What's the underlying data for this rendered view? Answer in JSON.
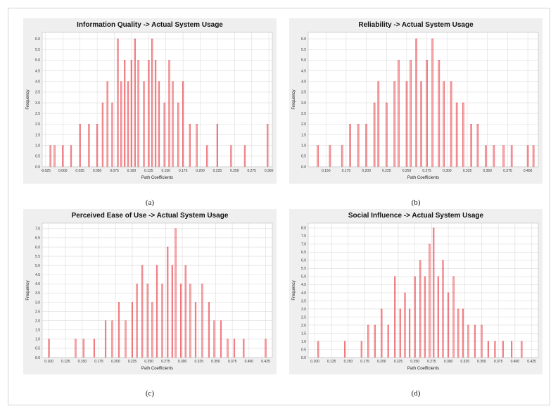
{
  "colors": {
    "bar": "#e8424a",
    "plot_bg": "#ffffff",
    "panel_bg": "#efefef",
    "grid": "#dcdcdc"
  },
  "chart_data": [
    {
      "type": "bar",
      "title": "Information Quality -> Actual System Usage",
      "caption": "(a)",
      "xlabel": "Path Coefficients",
      "ylabel": "Frequency",
      "xlim": [
        -0.03,
        0.305
      ],
      "ylim": [
        0,
        6.3
      ],
      "xticks": [
        "-0.025",
        "0.000",
        "0.025",
        "0.050",
        "0.075",
        "0.100",
        "0.125",
        "0.150",
        "0.175",
        "0.200",
        "0.225",
        "0.250",
        "0.275",
        "0.300"
      ],
      "yticks": [
        "0.0",
        "0.5",
        "1.0",
        "1.5",
        "2.0",
        "2.5",
        "3.0",
        "3.5",
        "4.0",
        "4.5",
        "5.0",
        "5.5",
        "6.0"
      ],
      "bars": [
        [
          -0.018,
          1
        ],
        [
          -0.012,
          1
        ],
        [
          0.0,
          1
        ],
        [
          0.012,
          1
        ],
        [
          0.025,
          2
        ],
        [
          0.038,
          2
        ],
        [
          0.05,
          2
        ],
        [
          0.058,
          3
        ],
        [
          0.065,
          4
        ],
        [
          0.072,
          3
        ],
        [
          0.08,
          6
        ],
        [
          0.085,
          4
        ],
        [
          0.09,
          5
        ],
        [
          0.095,
          4
        ],
        [
          0.1,
          5
        ],
        [
          0.105,
          6
        ],
        [
          0.11,
          5
        ],
        [
          0.118,
          4
        ],
        [
          0.125,
          5
        ],
        [
          0.13,
          6
        ],
        [
          0.135,
          5
        ],
        [
          0.14,
          4
        ],
        [
          0.148,
          3
        ],
        [
          0.155,
          5
        ],
        [
          0.16,
          4
        ],
        [
          0.168,
          3
        ],
        [
          0.175,
          4
        ],
        [
          0.185,
          2
        ],
        [
          0.195,
          2
        ],
        [
          0.21,
          1
        ],
        [
          0.225,
          2
        ],
        [
          0.245,
          1
        ],
        [
          0.265,
          1
        ],
        [
          0.298,
          2
        ]
      ]
    },
    {
      "type": "bar",
      "title": "Reliability -> Actual System Usage",
      "caption": "(b)",
      "xlabel": "Path Coefficients",
      "ylabel": "Frequency",
      "xlim": [
        0.128,
        0.413
      ],
      "ylim": [
        0,
        6.3
      ],
      "xticks": [
        "0.150",
        "0.175",
        "0.200",
        "0.225",
        "0.250",
        "0.275",
        "0.300",
        "0.325",
        "0.350",
        "0.375",
        "0.400"
      ],
      "yticks": [
        "0.0",
        "0.5",
        "1.0",
        "1.5",
        "2.0",
        "2.5",
        "3.0",
        "3.5",
        "4.0",
        "4.5",
        "5.0",
        "5.5",
        "6.0"
      ],
      "bars": [
        [
          0.14,
          1
        ],
        [
          0.155,
          1
        ],
        [
          0.17,
          1
        ],
        [
          0.18,
          2
        ],
        [
          0.19,
          2
        ],
        [
          0.2,
          2
        ],
        [
          0.21,
          3
        ],
        [
          0.215,
          4
        ],
        [
          0.225,
          3
        ],
        [
          0.235,
          4
        ],
        [
          0.24,
          5
        ],
        [
          0.25,
          4
        ],
        [
          0.255,
          5
        ],
        [
          0.262,
          6
        ],
        [
          0.268,
          4
        ],
        [
          0.275,
          5
        ],
        [
          0.282,
          6
        ],
        [
          0.29,
          5
        ],
        [
          0.296,
          4
        ],
        [
          0.305,
          4
        ],
        [
          0.312,
          3
        ],
        [
          0.32,
          3
        ],
        [
          0.33,
          2
        ],
        [
          0.338,
          2
        ],
        [
          0.348,
          1
        ],
        [
          0.358,
          1
        ],
        [
          0.37,
          1
        ],
        [
          0.38,
          1
        ],
        [
          0.4,
          1
        ],
        [
          0.407,
          1
        ]
      ]
    },
    {
      "type": "bar",
      "title": "Perceived Ease of Use -> Actual System Usage",
      "caption": "(c)",
      "xlabel": "Path Coefficients",
      "ylabel": "Frequency",
      "xlim": [
        0.09,
        0.435
      ],
      "ylim": [
        0,
        7.3
      ],
      "xticks": [
        "0.100",
        "0.125",
        "0.150",
        "0.175",
        "0.200",
        "0.225",
        "0.250",
        "0.275",
        "0.300",
        "0.325",
        "0.350",
        "0.375",
        "0.400",
        "0.425"
      ],
      "yticks": [
        "0.0",
        "0.5",
        "1.0",
        "1.5",
        "2.0",
        "2.5",
        "3.0",
        "3.5",
        "4.0",
        "4.5",
        "5.0",
        "5.5",
        "6.0",
        "6.5",
        "7.0"
      ],
      "bars": [
        [
          0.1,
          1
        ],
        [
          0.14,
          1
        ],
        [
          0.152,
          1
        ],
        [
          0.168,
          1
        ],
        [
          0.185,
          2
        ],
        [
          0.195,
          2
        ],
        [
          0.205,
          3
        ],
        [
          0.215,
          2
        ],
        [
          0.225,
          3
        ],
        [
          0.232,
          4
        ],
        [
          0.24,
          5
        ],
        [
          0.248,
          4
        ],
        [
          0.255,
          3
        ],
        [
          0.262,
          5
        ],
        [
          0.27,
          4
        ],
        [
          0.278,
          6
        ],
        [
          0.285,
          5
        ],
        [
          0.29,
          7
        ],
        [
          0.298,
          4
        ],
        [
          0.305,
          5
        ],
        [
          0.312,
          4
        ],
        [
          0.32,
          3
        ],
        [
          0.33,
          4
        ],
        [
          0.34,
          3
        ],
        [
          0.348,
          2
        ],
        [
          0.358,
          2
        ],
        [
          0.368,
          1
        ],
        [
          0.378,
          1
        ],
        [
          0.392,
          1
        ],
        [
          0.425,
          1
        ]
      ]
    },
    {
      "type": "bar",
      "title": "Social Influence -> Actual System Usage",
      "caption": "(d)",
      "xlabel": "Path Coefficients",
      "ylabel": "Frequency",
      "xlim": [
        0.09,
        0.435
      ],
      "ylim": [
        0,
        8.3
      ],
      "xticks": [
        "0.100",
        "0.125",
        "0.150",
        "0.175",
        "0.200",
        "0.225",
        "0.250",
        "0.275",
        "0.300",
        "0.325",
        "0.350",
        "0.375",
        "0.400",
        "0.425"
      ],
      "yticks": [
        "0.0",
        "0.5",
        "1.0",
        "1.5",
        "2.0",
        "2.5",
        "3.0",
        "3.5",
        "4.0",
        "4.5",
        "5.0",
        "5.5",
        "6.0",
        "6.5",
        "7.0",
        "7.5",
        "8.0"
      ],
      "bars": [
        [
          0.105,
          1
        ],
        [
          0.145,
          1
        ],
        [
          0.17,
          1
        ],
        [
          0.18,
          2
        ],
        [
          0.19,
          2
        ],
        [
          0.2,
          3
        ],
        [
          0.21,
          2
        ],
        [
          0.22,
          5
        ],
        [
          0.228,
          3
        ],
        [
          0.235,
          4
        ],
        [
          0.242,
          3
        ],
        [
          0.25,
          5
        ],
        [
          0.258,
          6
        ],
        [
          0.265,
          5
        ],
        [
          0.272,
          7
        ],
        [
          0.278,
          8
        ],
        [
          0.285,
          5
        ],
        [
          0.292,
          6
        ],
        [
          0.3,
          4
        ],
        [
          0.308,
          5
        ],
        [
          0.315,
          3
        ],
        [
          0.322,
          3
        ],
        [
          0.33,
          2
        ],
        [
          0.34,
          2
        ],
        [
          0.35,
          2
        ],
        [
          0.36,
          1
        ],
        [
          0.37,
          1
        ],
        [
          0.382,
          1
        ],
        [
          0.395,
          1
        ],
        [
          0.41,
          1
        ]
      ]
    }
  ]
}
